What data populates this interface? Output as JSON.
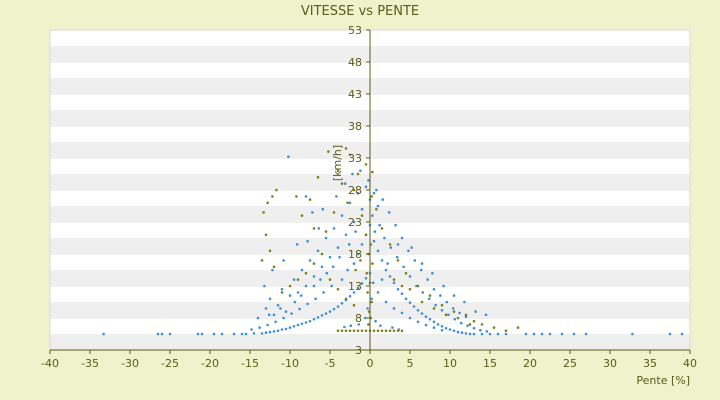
{
  "chart_data": {
    "type": "scatter",
    "title": "VITESSE vs PENTE",
    "xlabel": "Pente [%]",
    "ylabel": "[km/h]",
    "xlim": [
      -40,
      40
    ],
    "ylim": [
      3,
      53
    ],
    "x_ticks": [
      -40,
      -35,
      -30,
      -25,
      -20,
      -15,
      -10,
      -5,
      0,
      5,
      10,
      15,
      20,
      25,
      30,
      35,
      40
    ],
    "y_ticks": [
      3,
      8,
      13,
      18,
      23,
      28,
      33,
      38,
      43,
      48,
      53
    ],
    "grid": "horizontal alternating bands",
    "background": "#eef3cc",
    "plot_background": "#ffffff",
    "band_color": "#efefef",
    "series": [
      {
        "color": "#3b8fd6",
        "points": [
          [
            -33.3,
            5.5
          ],
          [
            -26.5,
            5.5
          ],
          [
            -26.0,
            5.5
          ],
          [
            -25.0,
            5.5
          ],
          [
            -21.5,
            5.5
          ],
          [
            -21.0,
            5.5
          ],
          [
            -19.5,
            5.5
          ],
          [
            -18.5,
            5.5
          ],
          [
            -17.0,
            5.5
          ],
          [
            -16.0,
            5.5
          ],
          [
            -15.5,
            5.5
          ],
          [
            -14.5,
            5.6
          ],
          [
            -13.5,
            5.6
          ],
          [
            -13.0,
            5.7
          ],
          [
            -12.5,
            5.8
          ],
          [
            -12.0,
            5.9
          ],
          [
            -11.5,
            6.0
          ],
          [
            -11.0,
            6.2
          ],
          [
            -10.5,
            6.3
          ],
          [
            -10.0,
            6.5
          ],
          [
            -9.5,
            6.7
          ],
          [
            -9.0,
            6.9
          ],
          [
            -8.5,
            7.1
          ],
          [
            -8.0,
            7.3
          ],
          [
            -7.5,
            7.5
          ],
          [
            -7.0,
            7.8
          ],
          [
            -6.5,
            8.1
          ],
          [
            -6.0,
            8.4
          ],
          [
            -5.5,
            8.7
          ],
          [
            -5.0,
            9.0
          ],
          [
            -4.5,
            9.4
          ],
          [
            -4.0,
            9.8
          ],
          [
            -3.5,
            10.3
          ],
          [
            -3.0,
            10.8
          ],
          [
            -2.5,
            11.4
          ],
          [
            -2.0,
            12.0
          ],
          [
            -1.5,
            12.7
          ],
          [
            -1.0,
            13.4
          ],
          [
            -0.5,
            14.2
          ],
          [
            0.0,
            15.0
          ],
          [
            -14.0,
            8.0
          ],
          [
            -13.0,
            9.5
          ],
          [
            -12.5,
            11.0
          ],
          [
            -12.0,
            8.5
          ],
          [
            -11.5,
            10.0
          ],
          [
            -11.0,
            12.5
          ],
          [
            -10.5,
            9.0
          ],
          [
            -10.0,
            11.5
          ],
          [
            -9.5,
            14.0
          ],
          [
            -9.0,
            12.0
          ],
          [
            -8.5,
            15.5
          ],
          [
            -8.0,
            13.0
          ],
          [
            -7.5,
            17.0
          ],
          [
            -7.0,
            14.5
          ],
          [
            -6.5,
            18.5
          ],
          [
            -6.0,
            16.0
          ],
          [
            -5.5,
            20.5
          ],
          [
            -5.0,
            17.5
          ],
          [
            -4.5,
            22.0
          ],
          [
            -4.0,
            19.0
          ],
          [
            -3.5,
            24.0
          ],
          [
            -3.0,
            21.0
          ],
          [
            -2.5,
            26.0
          ],
          [
            -2.0,
            23.0
          ],
          [
            -1.5,
            27.5
          ],
          [
            -1.0,
            25.0
          ],
          [
            -0.5,
            28.5
          ],
          [
            0.0,
            26.5
          ],
          [
            0.5,
            27.5
          ],
          [
            1.0,
            25.5
          ],
          [
            -10.2,
            33.2
          ],
          [
            -8.0,
            27.0
          ],
          [
            -7.2,
            24.5
          ],
          [
            -6.4,
            22.0
          ],
          [
            -9.1,
            19.5
          ],
          [
            -10.8,
            17.0
          ],
          [
            -12.2,
            15.5
          ],
          [
            -13.2,
            13.0
          ],
          [
            -7.8,
            20.0
          ],
          [
            -5.9,
            25.0
          ],
          [
            -4.2,
            27.0
          ],
          [
            -3.1,
            29.0
          ],
          [
            -2.2,
            30.5
          ],
          [
            -1.2,
            31.0
          ],
          [
            -0.2,
            29.5
          ],
          [
            0.8,
            28.0
          ],
          [
            1.6,
            26.5
          ],
          [
            2.4,
            24.5
          ],
          [
            3.2,
            22.5
          ],
          [
            4.0,
            20.5
          ],
          [
            4.8,
            18.5
          ],
          [
            5.6,
            17.0
          ],
          [
            6.4,
            15.5
          ],
          [
            7.2,
            14.0
          ],
          [
            8.0,
            12.5
          ],
          [
            8.8,
            11.5
          ],
          [
            9.6,
            10.5
          ],
          [
            10.4,
            9.5
          ],
          [
            11.2,
            8.8
          ],
          [
            12.0,
            8.2
          ],
          [
            0.5,
            20.0
          ],
          [
            1.0,
            18.5
          ],
          [
            1.5,
            17.0
          ],
          [
            2.0,
            15.5
          ],
          [
            2.5,
            14.5
          ],
          [
            3.0,
            13.5
          ],
          [
            3.5,
            12.5
          ],
          [
            4.0,
            11.8
          ],
          [
            4.5,
            11.0
          ],
          [
            5.0,
            10.4
          ],
          [
            5.5,
            9.8
          ],
          [
            6.0,
            9.2
          ],
          [
            6.5,
            8.7
          ],
          [
            7.0,
            8.2
          ],
          [
            7.5,
            7.8
          ],
          [
            8.0,
            7.4
          ],
          [
            8.5,
            7.0
          ],
          [
            9.0,
            6.7
          ],
          [
            9.5,
            6.4
          ],
          [
            10.0,
            6.2
          ],
          [
            10.5,
            6.0
          ],
          [
            11.0,
            5.8
          ],
          [
            11.5,
            5.7
          ],
          [
            12.0,
            5.6
          ],
          [
            12.5,
            5.5
          ],
          [
            13.0,
            5.5
          ],
          [
            14.0,
            5.5
          ],
          [
            15.0,
            5.5
          ],
          [
            16.0,
            5.5
          ],
          [
            17.0,
            5.5
          ],
          [
            19.5,
            5.5
          ],
          [
            20.5,
            5.5
          ],
          [
            21.5,
            5.5
          ],
          [
            22.5,
            5.5
          ],
          [
            24.0,
            5.5
          ],
          [
            25.5,
            5.5
          ],
          [
            27.0,
            5.5
          ],
          [
            32.8,
            5.5
          ],
          [
            37.5,
            5.5
          ],
          [
            39.0,
            5.5
          ],
          [
            -2.0,
            16.5
          ],
          [
            -1.5,
            18.0
          ],
          [
            -1.0,
            19.5
          ],
          [
            -0.5,
            21.0
          ],
          [
            0.0,
            22.5
          ],
          [
            0.3,
            24.0
          ],
          [
            0.6,
            21.5
          ],
          [
            1.2,
            22.5
          ],
          [
            1.8,
            20.5
          ],
          [
            2.6,
            19.0
          ],
          [
            3.4,
            17.5
          ],
          [
            4.2,
            16.0
          ],
          [
            5.0,
            14.5
          ],
          [
            5.8,
            13.0
          ],
          [
            6.6,
            12.0
          ],
          [
            7.4,
            11.0
          ],
          [
            8.2,
            10.0
          ],
          [
            9.0,
            9.2
          ],
          [
            9.8,
            8.5
          ],
          [
            10.6,
            7.8
          ],
          [
            11.4,
            7.2
          ],
          [
            12.2,
            6.8
          ],
          [
            13.0,
            6.4
          ],
          [
            13.8,
            6.1
          ],
          [
            14.6,
            5.9
          ],
          [
            -3.5,
            14.0
          ],
          [
            -2.8,
            15.5
          ],
          [
            -4.8,
            13.0
          ],
          [
            -5.8,
            12.0
          ],
          [
            -6.8,
            11.0
          ],
          [
            -7.8,
            10.2
          ],
          [
            -8.8,
            9.4
          ],
          [
            -9.8,
            8.7
          ],
          [
            -10.8,
            8.0
          ],
          [
            -11.8,
            7.4
          ],
          [
            -12.8,
            6.9
          ],
          [
            -13.8,
            6.5
          ],
          [
            -14.8,
            6.2
          ],
          [
            2.0,
            10.5
          ],
          [
            3.0,
            9.5
          ],
          [
            4.0,
            8.8
          ],
          [
            5.0,
            8.0
          ],
          [
            6.0,
            7.4
          ],
          [
            7.0,
            6.9
          ],
          [
            8.0,
            6.5
          ],
          [
            9.0,
            6.1
          ],
          [
            1.0,
            12.0
          ],
          [
            1.5,
            14.0
          ],
          [
            2.2,
            16.5
          ],
          [
            3.5,
            19.5
          ],
          [
            5.2,
            19.0
          ],
          [
            6.5,
            16.5
          ],
          [
            7.8,
            15.0
          ],
          [
            9.2,
            13.0
          ],
          [
            10.5,
            11.5
          ],
          [
            11.8,
            10.5
          ],
          [
            13.2,
            9.0
          ],
          [
            14.5,
            8.5
          ],
          [
            -1.8,
            21.5
          ],
          [
            -2.6,
            19.5
          ],
          [
            -3.8,
            17.5
          ],
          [
            -4.6,
            16.0
          ],
          [
            -5.4,
            15.0
          ],
          [
            -6.2,
            14.0
          ],
          [
            -7.0,
            13.0
          ],
          [
            -8.6,
            11.5
          ],
          [
            -9.4,
            10.5
          ],
          [
            -11.2,
            9.5
          ],
          [
            -12.6,
            8.5
          ],
          [
            0.2,
            11.0
          ],
          [
            0.4,
            13.5
          ],
          [
            -0.3,
            9.5
          ],
          [
            -0.6,
            8.0
          ],
          [
            0.7,
            7.5
          ],
          [
            1.3,
            6.8
          ],
          [
            -1.4,
            7.0
          ],
          [
            2.8,
            6.5
          ],
          [
            -2.4,
            6.8
          ],
          [
            3.6,
            6.2
          ],
          [
            -3.2,
            6.6
          ]
        ]
      },
      {
        "color": "#7f7f12",
        "points": [
          [
            -5.2,
            34.0
          ],
          [
            -3.0,
            34.5
          ],
          [
            -2.5,
            33.5
          ],
          [
            -6.5,
            30.0
          ],
          [
            -4.0,
            31.0
          ],
          [
            -3.5,
            29.0
          ],
          [
            -1.5,
            30.5
          ],
          [
            -0.5,
            32.0
          ],
          [
            0.3,
            30.8
          ],
          [
            -7.5,
            26.5
          ],
          [
            -11.7,
            28.0
          ],
          [
            -12.2,
            27.0
          ],
          [
            -12.8,
            26.0
          ],
          [
            -13.3,
            24.5
          ],
          [
            -13.0,
            21.0
          ],
          [
            -12.5,
            18.5
          ],
          [
            -13.5,
            17.0
          ],
          [
            -12.0,
            16.0
          ],
          [
            -9.2,
            27.0
          ],
          [
            -8.5,
            24.0
          ],
          [
            -7.0,
            22.0
          ],
          [
            -5.5,
            21.5
          ],
          [
            -4.5,
            24.5
          ],
          [
            -2.8,
            26.0
          ],
          [
            -2.0,
            28.0
          ],
          [
            -1.0,
            24.0
          ],
          [
            -0.5,
            21.0
          ],
          [
            0.2,
            27.0
          ],
          [
            0.8,
            25.0
          ],
          [
            1.5,
            22.0
          ],
          [
            2.5,
            19.5
          ],
          [
            3.5,
            17.0
          ],
          [
            4.5,
            15.0
          ],
          [
            6.0,
            13.0
          ],
          [
            7.5,
            11.5
          ],
          [
            9.0,
            10.0
          ],
          [
            10.5,
            9.0
          ],
          [
            12.0,
            8.5
          ],
          [
            13.0,
            7.5
          ],
          [
            14.0,
            7.0
          ],
          [
            15.5,
            6.5
          ],
          [
            17.0,
            6.0
          ],
          [
            18.5,
            6.5
          ],
          [
            -0.5,
            6.0
          ],
          [
            0.0,
            6.0
          ],
          [
            0.5,
            6.0
          ],
          [
            1.0,
            6.0
          ],
          [
            1.5,
            6.0
          ],
          [
            -1.0,
            6.0
          ],
          [
            -1.5,
            6.0
          ],
          [
            -2.0,
            6.0
          ],
          [
            -2.5,
            6.0
          ],
          [
            -3.0,
            6.0
          ],
          [
            -3.5,
            6.0
          ],
          [
            -4.0,
            6.0
          ],
          [
            2.0,
            6.0
          ],
          [
            2.5,
            6.0
          ],
          [
            3.0,
            6.0
          ],
          [
            3.5,
            6.0
          ],
          [
            4.0,
            6.0
          ],
          [
            -0.2,
            7.0
          ],
          [
            0.1,
            8.0
          ],
          [
            -0.1,
            9.0
          ],
          [
            0.2,
            10.5
          ],
          [
            -0.3,
            12.0
          ],
          [
            0.0,
            13.5
          ],
          [
            -0.4,
            15.0
          ],
          [
            0.3,
            16.5
          ],
          [
            -0.2,
            18.0
          ],
          [
            0.1,
            19.5
          ],
          [
            -6.0,
            18.0
          ],
          [
            -7.0,
            16.5
          ],
          [
            -8.0,
            15.0
          ],
          [
            -9.0,
            14.0
          ],
          [
            -10.0,
            13.0
          ],
          [
            -11.0,
            12.0
          ],
          [
            -5.0,
            14.0
          ],
          [
            -4.0,
            12.5
          ],
          [
            -3.0,
            11.0
          ],
          [
            -2.0,
            10.0
          ],
          [
            5.0,
            12.5
          ],
          [
            6.5,
            10.5
          ],
          [
            8.0,
            9.5
          ],
          [
            9.5,
            8.5
          ],
          [
            11.0,
            8.0
          ],
          [
            12.5,
            7.0
          ],
          [
            3.0,
            14.0
          ],
          [
            4.0,
            13.0
          ],
          [
            -1.2,
            17.0
          ],
          [
            -1.8,
            15.5
          ]
        ]
      }
    ]
  }
}
